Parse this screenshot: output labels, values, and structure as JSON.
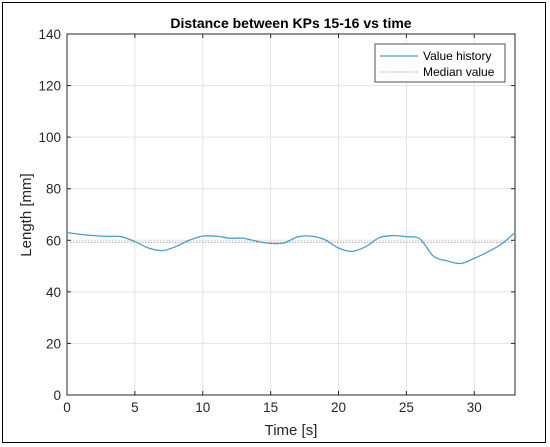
{
  "chart_data": {
    "type": "line",
    "title": "Distance between KPs 15-16 vs time",
    "xlabel": "Time [s]",
    "ylabel": "Length [mm]",
    "xlim": [
      0,
      33
    ],
    "ylim": [
      0,
      140
    ],
    "xticks": [
      0,
      5,
      10,
      15,
      20,
      25,
      30
    ],
    "yticks": [
      0,
      20,
      40,
      60,
      80,
      100,
      120,
      140
    ],
    "xtick_labels": [
      "0",
      "5",
      "10",
      "15",
      "20",
      "25",
      "30"
    ],
    "ytick_labels": [
      "0",
      "20",
      "40",
      "60",
      "80",
      "100",
      "120",
      "140"
    ],
    "grid": true,
    "legend_position": "top-right",
    "series": [
      {
        "name": "Value history",
        "color": "#4a9fd0",
        "style": "solid",
        "x": [
          0,
          1,
          2,
          3,
          4,
          5,
          6,
          7,
          8,
          9,
          10,
          11,
          12,
          13,
          14,
          15,
          16,
          17,
          18,
          19,
          20,
          21,
          22,
          23,
          24,
          25,
          26,
          27,
          28,
          29,
          30,
          31,
          32,
          33
        ],
        "y": [
          63,
          62.3,
          61.8,
          61.5,
          61.4,
          59.5,
          57.0,
          56.0,
          57.5,
          60.0,
          61.6,
          61.6,
          60.8,
          60.8,
          59.6,
          58.8,
          59.0,
          61.3,
          61.6,
          60.2,
          57.0,
          55.7,
          57.5,
          61.0,
          61.8,
          61.4,
          60.5,
          53.8,
          52.0,
          51.0,
          53.0,
          55.5,
          58.5,
          63.0
        ]
      },
      {
        "name": "Median value",
        "color": "#b8b8b8",
        "style": "dotted",
        "x": [
          0,
          33
        ],
        "y": [
          59.2,
          59.2
        ]
      }
    ]
  }
}
